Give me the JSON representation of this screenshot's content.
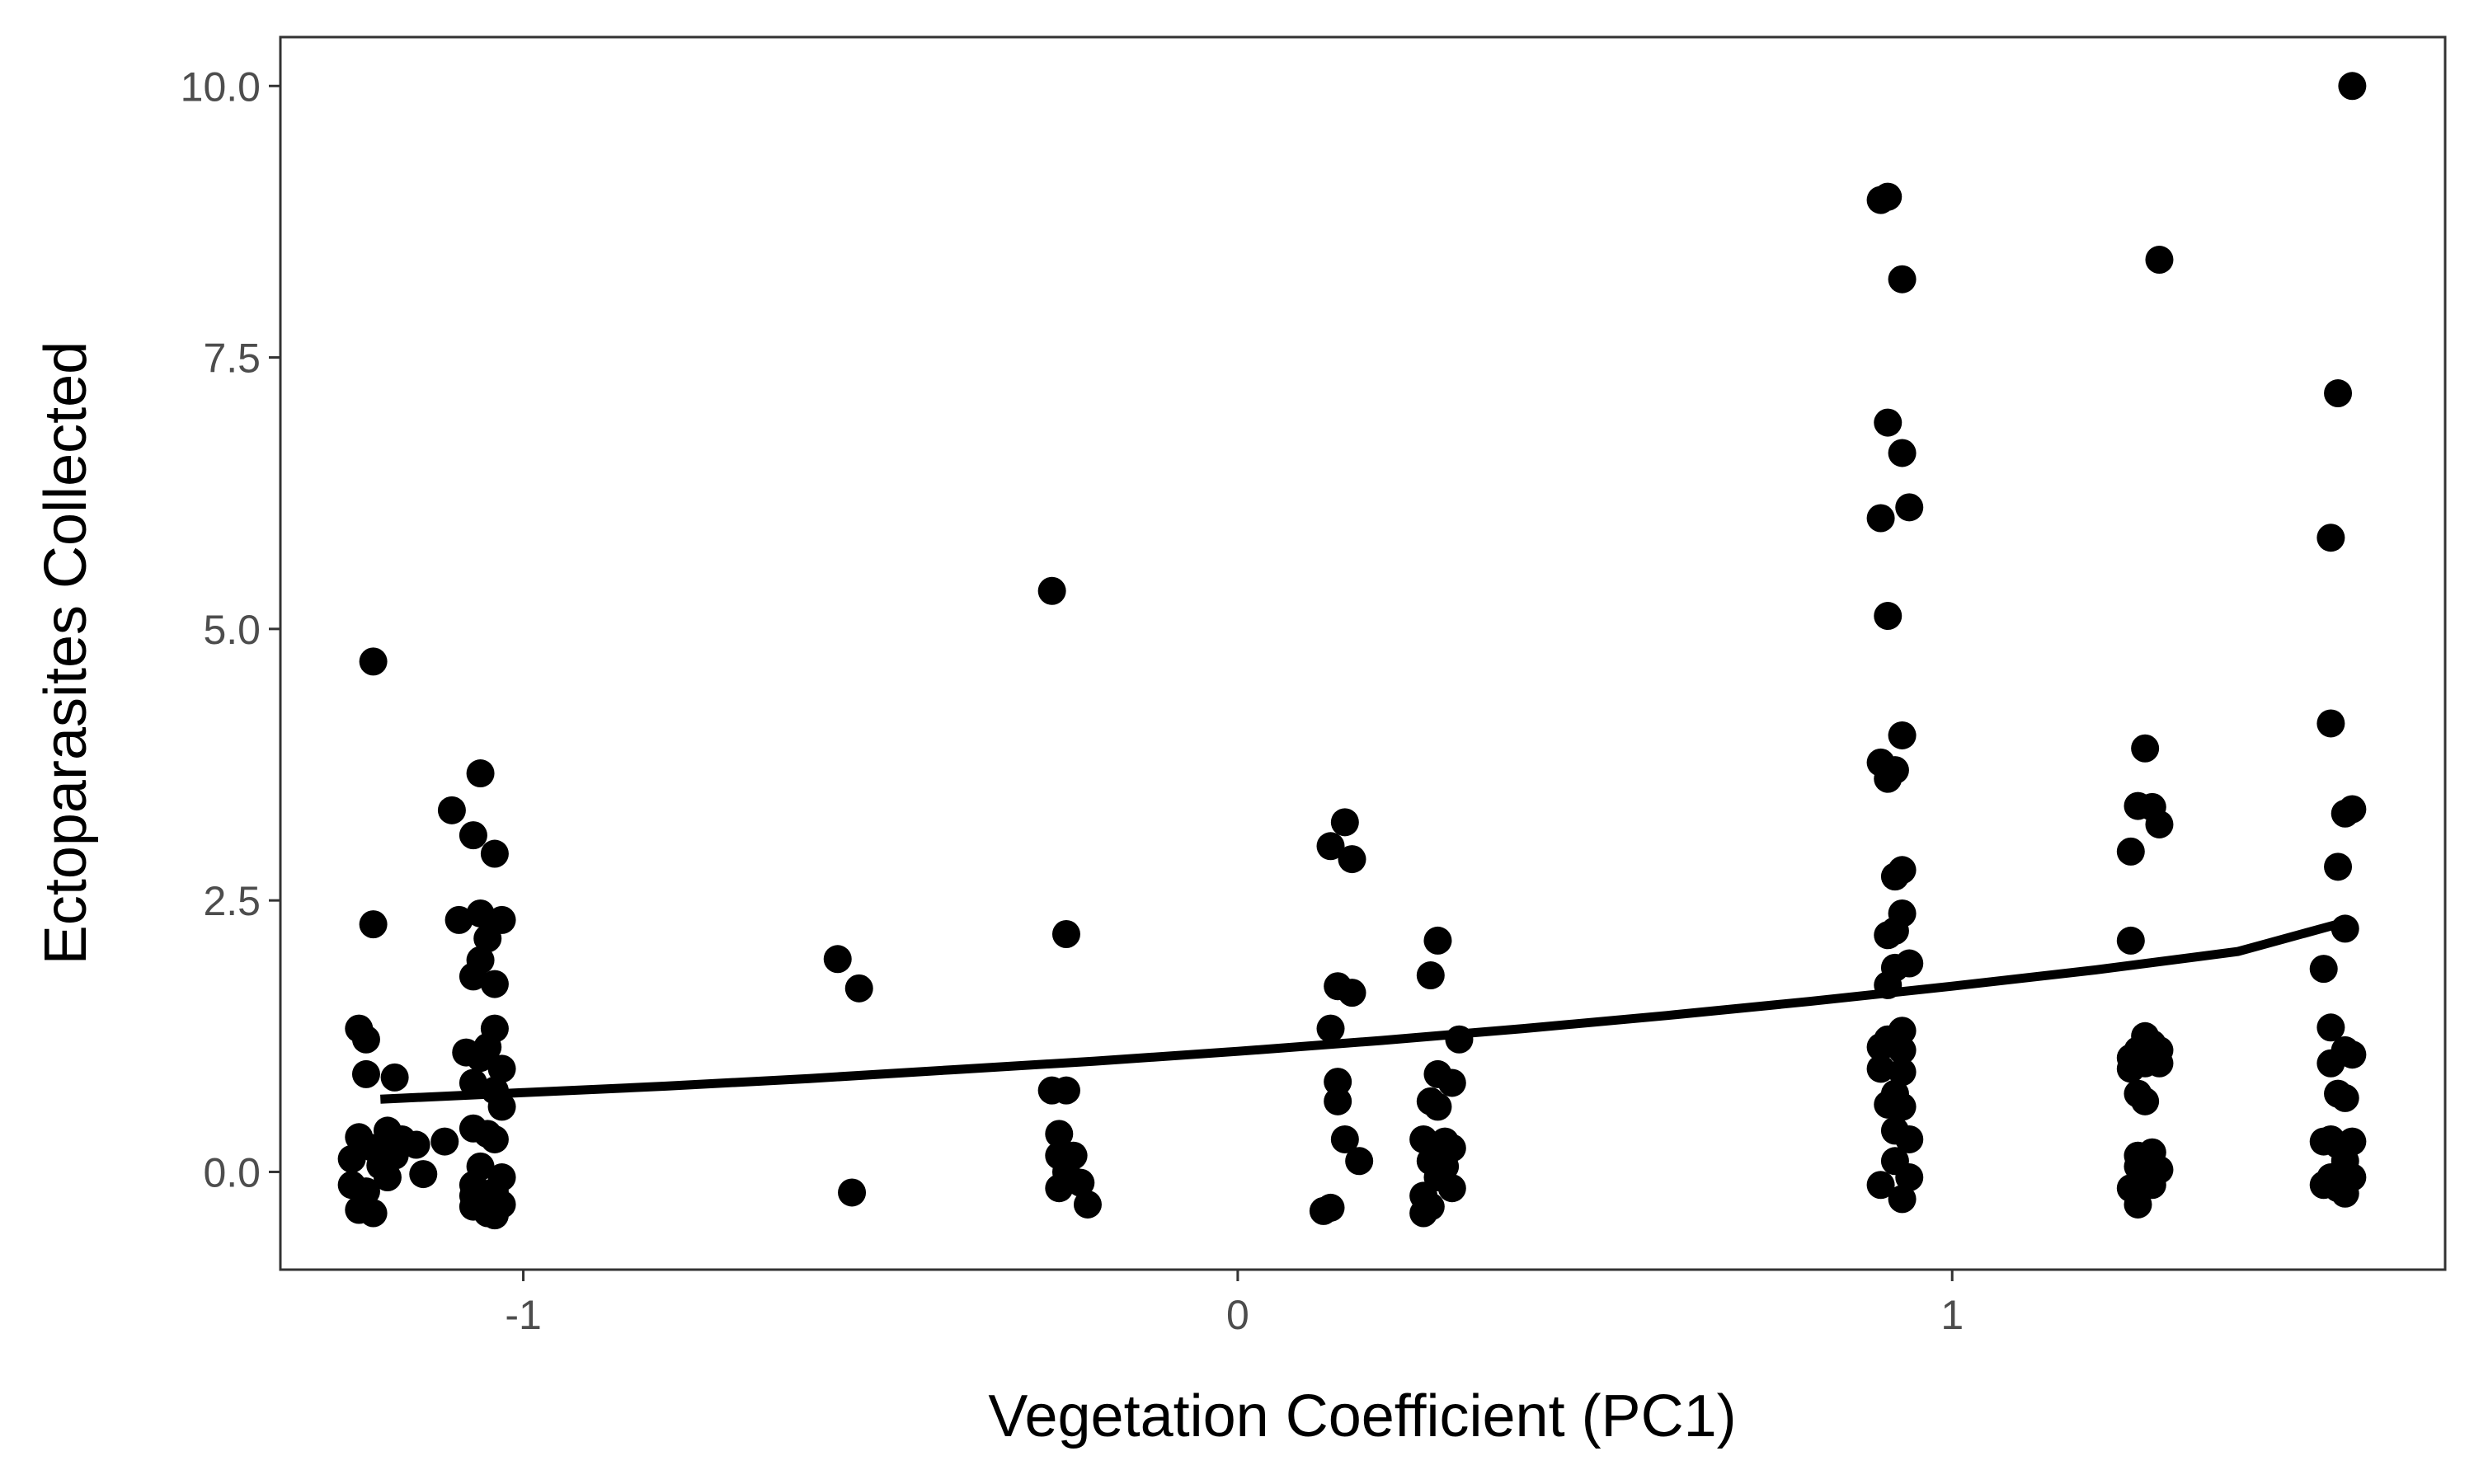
{
  "chart_data": {
    "type": "scatter",
    "xlabel": "Vegetation Coefficient (PC1)",
    "ylabel": "Ectoparasites Collected",
    "xlim": [
      -1.34,
      1.69
    ],
    "ylim": [
      -0.9,
      10.45
    ],
    "xticks": [
      {
        "value": -1,
        "label": "-1"
      },
      {
        "value": 0,
        "label": "0"
      },
      {
        "value": 1,
        "label": "1"
      }
    ],
    "yticks": [
      {
        "value": 0,
        "label": "0.0"
      },
      {
        "value": 2.5,
        "label": "2.5"
      },
      {
        "value": 5,
        "label": "5.0"
      },
      {
        "value": 7.5,
        "label": "7.5"
      },
      {
        "value": 10,
        "label": "10.0"
      }
    ],
    "grid": false,
    "points": [
      [
        -1.21,
        4.7
      ],
      [
        -1.21,
        2.28
      ],
      [
        -1.22,
        1.22
      ],
      [
        -1.23,
        1.32
      ],
      [
        -1.22,
        0.9
      ],
      [
        -1.18,
        0.87
      ],
      [
        -1.23,
        0.32
      ],
      [
        -1.21,
        0.22
      ],
      [
        -1.19,
        0.38
      ],
      [
        -1.17,
        0.3
      ],
      [
        -1.24,
        0.12
      ],
      [
        -1.2,
        0.06
      ],
      [
        -1.18,
        0.15
      ],
      [
        -1.15,
        0.25
      ],
      [
        -1.24,
        -0.12
      ],
      [
        -1.22,
        -0.18
      ],
      [
        -1.19,
        -0.05
      ],
      [
        -1.23,
        -0.35
      ],
      [
        -1.21,
        -0.38
      ],
      [
        -1.14,
        -0.02
      ],
      [
        -1.11,
        0.28
      ],
      [
        -1.1,
        3.33
      ],
      [
        -1.09,
        2.32
      ],
      [
        -1.06,
        3.67
      ],
      [
        -1.07,
        3.1
      ],
      [
        -1.04,
        2.93
      ],
      [
        -1.06,
        2.38
      ],
      [
        -1.03,
        2.32
      ],
      [
        -1.05,
        2.15
      ],
      [
        -1.06,
        1.95
      ],
      [
        -1.07,
        1.8
      ],
      [
        -1.04,
        1.73
      ],
      [
        -1.04,
        1.32
      ],
      [
        -1.08,
        1.1
      ],
      [
        -1.05,
        1.15
      ],
      [
        -1.06,
        1.05
      ],
      [
        -1.03,
        0.95
      ],
      [
        -1.07,
        0.82
      ],
      [
        -1.04,
        0.75
      ],
      [
        -1.03,
        0.6
      ],
      [
        -1.07,
        0.4
      ],
      [
        -1.05,
        0.35
      ],
      [
        -1.04,
        0.3
      ],
      [
        -1.06,
        0.05
      ],
      [
        -1.03,
        -0.05
      ],
      [
        -1.07,
        -0.12
      ],
      [
        -1.04,
        -0.18
      ],
      [
        -1.06,
        -0.28
      ],
      [
        -1.03,
        -0.3
      ],
      [
        -1.07,
        -0.32
      ],
      [
        -1.05,
        -0.38
      ],
      [
        -1.04,
        -0.4
      ],
      [
        -1.07,
        -0.22
      ],
      [
        -0.56,
        1.96
      ],
      [
        -0.53,
        1.69
      ],
      [
        -0.54,
        -0.19
      ],
      [
        -0.26,
        5.35
      ],
      [
        -0.24,
        2.19
      ],
      [
        -0.26,
        0.75
      ],
      [
        -0.24,
        0.75
      ],
      [
        -0.25,
        0.35
      ],
      [
        -0.25,
        0.15
      ],
      [
        -0.23,
        0.15
      ],
      [
        -0.24,
        0.0
      ],
      [
        -0.25,
        -0.15
      ],
      [
        -0.22,
        -0.1
      ],
      [
        -0.21,
        -0.3
      ],
      [
        0.15,
        3.22
      ],
      [
        0.13,
        3.0
      ],
      [
        0.16,
        2.88
      ],
      [
        0.14,
        1.71
      ],
      [
        0.16,
        1.65
      ],
      [
        0.13,
        1.32
      ],
      [
        0.14,
        0.83
      ],
      [
        0.14,
        0.65
      ],
      [
        0.15,
        0.3
      ],
      [
        0.17,
        0.1
      ],
      [
        0.13,
        -0.33
      ],
      [
        0.12,
        -0.36
      ],
      [
        0.28,
        2.13
      ],
      [
        0.27,
        1.81
      ],
      [
        0.28,
        0.9
      ],
      [
        0.3,
        0.82
      ],
      [
        0.27,
        0.65
      ],
      [
        0.28,
        0.6
      ],
      [
        0.26,
        0.3
      ],
      [
        0.29,
        0.28
      ],
      [
        0.3,
        0.22
      ],
      [
        0.27,
        0.1
      ],
      [
        0.29,
        0.05
      ],
      [
        0.28,
        -0.05
      ],
      [
        0.3,
        -0.15
      ],
      [
        0.26,
        -0.22
      ],
      [
        0.27,
        -0.32
      ],
      [
        0.26,
        -0.38
      ],
      [
        0.31,
        1.22
      ],
      [
        0.9,
        8.95
      ],
      [
        0.91,
        8.98
      ],
      [
        0.93,
        8.22
      ],
      [
        0.91,
        6.9
      ],
      [
        0.93,
        6.62
      ],
      [
        0.9,
        6.02
      ],
      [
        0.94,
        6.12
      ],
      [
        0.91,
        5.12
      ],
      [
        0.93,
        4.02
      ],
      [
        0.9,
        3.77
      ],
      [
        0.92,
        3.7
      ],
      [
        0.91,
        3.62
      ],
      [
        0.93,
        2.78
      ],
      [
        0.92,
        2.72
      ],
      [
        0.93,
        2.38
      ],
      [
        0.92,
        2.22
      ],
      [
        0.91,
        2.18
      ],
      [
        0.94,
        1.92
      ],
      [
        0.92,
        1.88
      ],
      [
        0.91,
        1.72
      ],
      [
        0.93,
        1.3
      ],
      [
        0.91,
        1.22
      ],
      [
        0.9,
        1.15
      ],
      [
        0.93,
        1.12
      ],
      [
        0.9,
        0.95
      ],
      [
        0.93,
        0.92
      ],
      [
        0.92,
        0.72
      ],
      [
        0.91,
        0.62
      ],
      [
        0.93,
        0.6
      ],
      [
        0.92,
        0.38
      ],
      [
        0.94,
        0.3
      ],
      [
        0.92,
        0.1
      ],
      [
        0.94,
        -0.05
      ],
      [
        0.9,
        -0.12
      ],
      [
        0.93,
        -0.25
      ],
      [
        1.29,
        8.4
      ],
      [
        1.27,
        3.9
      ],
      [
        1.26,
        3.37
      ],
      [
        1.28,
        3.36
      ],
      [
        1.29,
        3.2
      ],
      [
        1.25,
        2.95
      ],
      [
        1.25,
        2.13
      ],
      [
        1.27,
        1.25
      ],
      [
        1.28,
        1.18
      ],
      [
        1.26,
        1.12
      ],
      [
        1.29,
        1.12
      ],
      [
        1.25,
        1.05
      ],
      [
        1.27,
        1.0
      ],
      [
        1.29,
        1.0
      ],
      [
        1.25,
        0.95
      ],
      [
        1.26,
        0.72
      ],
      [
        1.27,
        0.65
      ],
      [
        1.26,
        0.15
      ],
      [
        1.28,
        0.18
      ],
      [
        1.26,
        0.05
      ],
      [
        1.29,
        0.02
      ],
      [
        1.27,
        -0.05
      ],
      [
        1.25,
        -0.15
      ],
      [
        1.28,
        -0.12
      ],
      [
        1.26,
        -0.3
      ],
      [
        1.56,
        10.0
      ],
      [
        1.54,
        7.17
      ],
      [
        1.53,
        5.84
      ],
      [
        1.53,
        4.13
      ],
      [
        1.56,
        3.34
      ],
      [
        1.55,
        3.3
      ],
      [
        1.54,
        2.81
      ],
      [
        1.55,
        2.24
      ],
      [
        1.52,
        1.87
      ],
      [
        1.53,
        1.33
      ],
      [
        1.55,
        1.12
      ],
      [
        1.56,
        1.08
      ],
      [
        1.53,
        1.0
      ],
      [
        1.54,
        0.72
      ],
      [
        1.55,
        0.68
      ],
      [
        1.53,
        0.3
      ],
      [
        1.52,
        0.28
      ],
      [
        1.54,
        0.25
      ],
      [
        1.56,
        0.28
      ],
      [
        1.55,
        0.1
      ],
      [
        1.53,
        -0.05
      ],
      [
        1.56,
        -0.05
      ],
      [
        1.52,
        -0.12
      ],
      [
        1.54,
        -0.15
      ],
      [
        1.55,
        -0.2
      ]
    ],
    "fit_line": {
      "x": [
        -1.2,
        -1.0,
        -0.8,
        -0.6,
        -0.4,
        -0.2,
        0.0,
        0.2,
        0.4,
        0.6,
        0.8,
        1.0,
        1.2,
        1.4,
        1.55
      ],
      "y": [
        0.67,
        0.73,
        0.79,
        0.86,
        0.94,
        1.02,
        1.11,
        1.21,
        1.32,
        1.44,
        1.57,
        1.71,
        1.86,
        2.03,
        2.3
      ]
    }
  }
}
